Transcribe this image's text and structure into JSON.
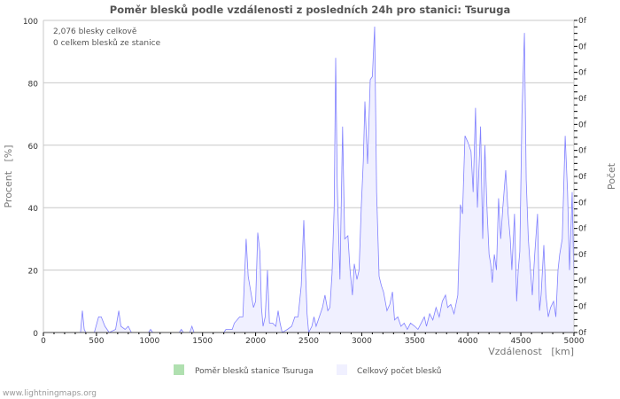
{
  "chart_data": {
    "type": "area",
    "title": "Poměr blesků podle vzdálenosti z posledních 24h pro stanici: Tsuruga",
    "info_lines": [
      "2,076 blesky celkově",
      "0 celkem blesků ze stanice"
    ],
    "xlabel": "Vzdálenost   [km]",
    "ylabel": "Procent   [%]",
    "y2label": "Počet",
    "xlim": [
      0,
      5000
    ],
    "ylim": [
      0,
      100
    ],
    "xticks": [
      0,
      500,
      1000,
      1500,
      2000,
      2500,
      3000,
      3500,
      4000,
      4500,
      5000
    ],
    "yticks": [
      0,
      20,
      40,
      60,
      80,
      100
    ],
    "y2ticks": [
      "0f",
      "0f",
      "0f",
      "0f",
      "0f",
      "0f",
      "0f",
      "0f",
      "0f",
      "0f",
      "0f",
      "0f",
      "0f"
    ],
    "grid": true,
    "colors": {
      "total_line": "#8080ff",
      "total_fill": "#f0f0ff",
      "station_fill": "#b0e0b0",
      "grid": "#c8c8c8"
    },
    "legend": {
      "placement": "bottom",
      "items": [
        {
          "name": "Poměr blesků stanice Tsuruga",
          "color": "#b0e0b0"
        },
        {
          "name": "Celkový počet blesků",
          "color": "#f0f0ff"
        }
      ]
    },
    "series": [
      {
        "name": "Celkový počet blesků",
        "points": [
          [
            0,
            0
          ],
          [
            300,
            0
          ],
          [
            350,
            0
          ],
          [
            367,
            7
          ],
          [
            385,
            1
          ],
          [
            400,
            0
          ],
          [
            480,
            0
          ],
          [
            520,
            5
          ],
          [
            545,
            5
          ],
          [
            580,
            2
          ],
          [
            620,
            0
          ],
          [
            680,
            1
          ],
          [
            710,
            7
          ],
          [
            730,
            2
          ],
          [
            770,
            1
          ],
          [
            800,
            2
          ],
          [
            830,
            0
          ],
          [
            990,
            0
          ],
          [
            1010,
            1
          ],
          [
            1030,
            0
          ],
          [
            1280,
            0
          ],
          [
            1300,
            1
          ],
          [
            1320,
            0
          ],
          [
            1380,
            0
          ],
          [
            1400,
            2
          ],
          [
            1420,
            0
          ],
          [
            1700,
            0
          ],
          [
            1720,
            1
          ],
          [
            1780,
            1
          ],
          [
            1800,
            3
          ],
          [
            1850,
            5
          ],
          [
            1880,
            5
          ],
          [
            1911,
            30
          ],
          [
            1930,
            18
          ],
          [
            1960,
            12
          ],
          [
            1980,
            8
          ],
          [
            2000,
            10
          ],
          [
            2020,
            32
          ],
          [
            2040,
            26
          ],
          [
            2055,
            8
          ],
          [
            2070,
            2
          ],
          [
            2090,
            5
          ],
          [
            2112,
            20
          ],
          [
            2130,
            3
          ],
          [
            2160,
            3
          ],
          [
            2190,
            2
          ],
          [
            2212,
            7
          ],
          [
            2230,
            3
          ],
          [
            2250,
            0
          ],
          [
            2300,
            1
          ],
          [
            2340,
            2
          ],
          [
            2370,
            5
          ],
          [
            2400,
            5
          ],
          [
            2430,
            15
          ],
          [
            2454,
            36
          ],
          [
            2470,
            20
          ],
          [
            2485,
            6
          ],
          [
            2500,
            0
          ],
          [
            2530,
            2
          ],
          [
            2550,
            5
          ],
          [
            2570,
            2
          ],
          [
            2600,
            5
          ],
          [
            2630,
            8
          ],
          [
            2654,
            12
          ],
          [
            2680,
            7
          ],
          [
            2700,
            8
          ],
          [
            2720,
            19
          ],
          [
            2740,
            40
          ],
          [
            2755,
            88
          ],
          [
            2770,
            47
          ],
          [
            2795,
            17
          ],
          [
            2820,
            66
          ],
          [
            2840,
            30
          ],
          [
            2870,
            31
          ],
          [
            2890,
            20
          ],
          [
            2912,
            12
          ],
          [
            2930,
            22
          ],
          [
            2955,
            17
          ],
          [
            2975,
            20
          ],
          [
            2997,
            41
          ],
          [
            3015,
            55
          ],
          [
            3030,
            74
          ],
          [
            3055,
            54
          ],
          [
            3080,
            81
          ],
          [
            3100,
            82
          ],
          [
            3122,
            98
          ],
          [
            3140,
            45
          ],
          [
            3164,
            18
          ],
          [
            3185,
            15
          ],
          [
            3205,
            13
          ],
          [
            3238,
            7
          ],
          [
            3265,
            9
          ],
          [
            3290,
            13
          ],
          [
            3310,
            4
          ],
          [
            3340,
            5
          ],
          [
            3370,
            2
          ],
          [
            3400,
            3
          ],
          [
            3430,
            1
          ],
          [
            3460,
            3
          ],
          [
            3500,
            2
          ],
          [
            3530,
            1
          ],
          [
            3560,
            3
          ],
          [
            3590,
            5
          ],
          [
            3610,
            2
          ],
          [
            3640,
            6
          ],
          [
            3670,
            4
          ],
          [
            3700,
            8
          ],
          [
            3730,
            5
          ],
          [
            3760,
            10
          ],
          [
            3790,
            12
          ],
          [
            3810,
            8
          ],
          [
            3840,
            9
          ],
          [
            3870,
            6
          ],
          [
            3906,
            12
          ],
          [
            3930,
            41
          ],
          [
            3950,
            38
          ],
          [
            3973,
            63
          ],
          [
            4000,
            61
          ],
          [
            4030,
            58
          ],
          [
            4050,
            45
          ],
          [
            4073,
            72
          ],
          [
            4090,
            40
          ],
          [
            4120,
            66
          ],
          [
            4140,
            30
          ],
          [
            4160,
            60
          ],
          [
            4180,
            40
          ],
          [
            4200,
            25
          ],
          [
            4215,
            22
          ],
          [
            4230,
            16
          ],
          [
            4250,
            25
          ],
          [
            4270,
            20
          ],
          [
            4290,
            43
          ],
          [
            4310,
            30
          ],
          [
            4330,
            40
          ],
          [
            4357,
            52
          ],
          [
            4380,
            38
          ],
          [
            4400,
            30
          ],
          [
            4415,
            20
          ],
          [
            4440,
            38
          ],
          [
            4460,
            10
          ],
          [
            4475,
            20
          ],
          [
            4490,
            26
          ],
          [
            4510,
            70
          ],
          [
            4533,
            96
          ],
          [
            4550,
            49
          ],
          [
            4570,
            30
          ],
          [
            4590,
            20
          ],
          [
            4608,
            12
          ],
          [
            4630,
            25
          ],
          [
            4657,
            38
          ],
          [
            4675,
            7
          ],
          [
            4690,
            12
          ],
          [
            4716,
            28
          ],
          [
            4735,
            12
          ],
          [
            4758,
            5
          ],
          [
            4780,
            8
          ],
          [
            4808,
            10
          ],
          [
            4830,
            5
          ],
          [
            4850,
            20
          ],
          [
            4866,
            25
          ],
          [
            4890,
            30
          ],
          [
            4917,
            63
          ],
          [
            4940,
            45
          ],
          [
            4958,
            20
          ],
          [
            4983,
            45
          ],
          [
            5000,
            15
          ]
        ]
      },
      {
        "name": "Poměr blesků stanice Tsuruga",
        "points": []
      }
    ]
  },
  "footer": "www.lightningmaps.org"
}
